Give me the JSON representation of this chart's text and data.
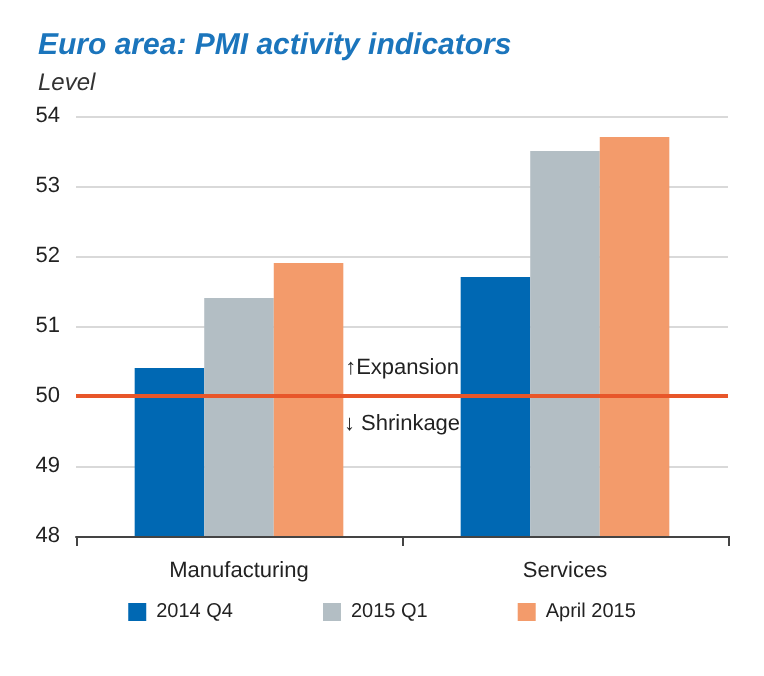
{
  "chart_data": {
    "type": "bar",
    "title": "Euro area: PMI activity indicators",
    "ylabel": "Level",
    "categories": [
      "Manufacturing",
      "Services"
    ],
    "series": [
      {
        "name": "2014 Q4",
        "color": "#0068b3",
        "values": [
          50.4,
          51.7
        ]
      },
      {
        "name": "2015 Q1",
        "color": "#b3bec4",
        "values": [
          51.4,
          53.5
        ]
      },
      {
        "name": "April 2015",
        "color": "#f39b6b",
        "values": [
          51.9,
          53.7
        ]
      }
    ],
    "ylim": [
      48,
      54
    ],
    "yticks": [
      48,
      49,
      50,
      51,
      52,
      53,
      54
    ],
    "grid": "y",
    "legend": "bottom",
    "ref_lines": [
      {
        "axis": "y",
        "value": 50,
        "color": "#e8562a",
        "line_style": "solid"
      }
    ],
    "annotations": [
      "↑Expansion",
      "↓ Shrinkage"
    ]
  }
}
